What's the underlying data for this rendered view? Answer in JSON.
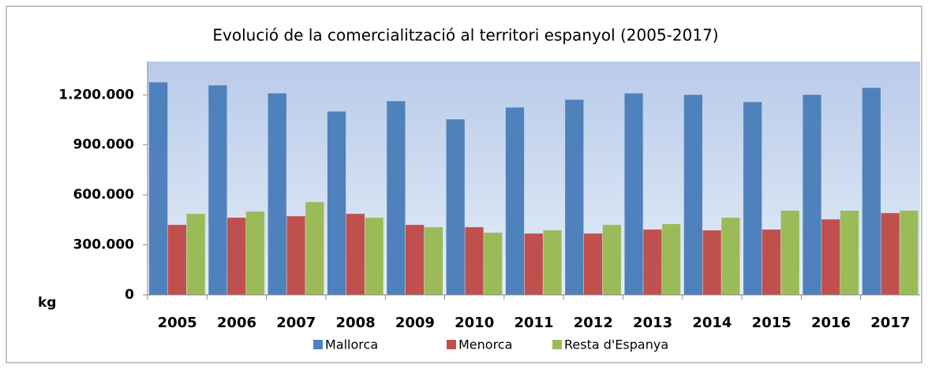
{
  "chart_data": {
    "type": "bar",
    "title": "Evolució de la comercialització al territori espanyol (2005-2017)",
    "y_label": "kg",
    "categories": [
      "2005",
      "2006",
      "2007",
      "2008",
      "2009",
      "2010",
      "2011",
      "2012",
      "2013",
      "2014",
      "2015",
      "2016",
      "2017"
    ],
    "series": [
      {
        "name": "Mallorca",
        "color": "#4f81bd",
        "values": [
          1275000,
          1257000,
          1209000,
          1100000,
          1162000,
          1053000,
          1124000,
          1171000,
          1209000,
          1200000,
          1157000,
          1200000,
          1242000
        ]
      },
      {
        "name": "Menorca",
        "color": "#c0504d",
        "values": [
          420000,
          463000,
          472000,
          486000,
          420000,
          406000,
          368000,
          368000,
          392000,
          387000,
          392000,
          453000,
          491000
        ]
      },
      {
        "name": "Resta d'Espanya",
        "color": "#9bbb59",
        "values": [
          486000,
          500000,
          557000,
          463000,
          406000,
          373000,
          387000,
          420000,
          425000,
          463000,
          505000,
          505000,
          505000
        ]
      }
    ],
    "ylim": [
      0,
      1400000
    ],
    "yticks": [
      0,
      {
        "value": 300000,
        "label": "300.000"
      },
      {
        "value": 600000,
        "label": "600.000"
      },
      {
        "value": 900000,
        "label": "900.000"
      },
      {
        "value": 1200000,
        "label": "1.200.000"
      }
    ],
    "legend": "bottom"
  }
}
